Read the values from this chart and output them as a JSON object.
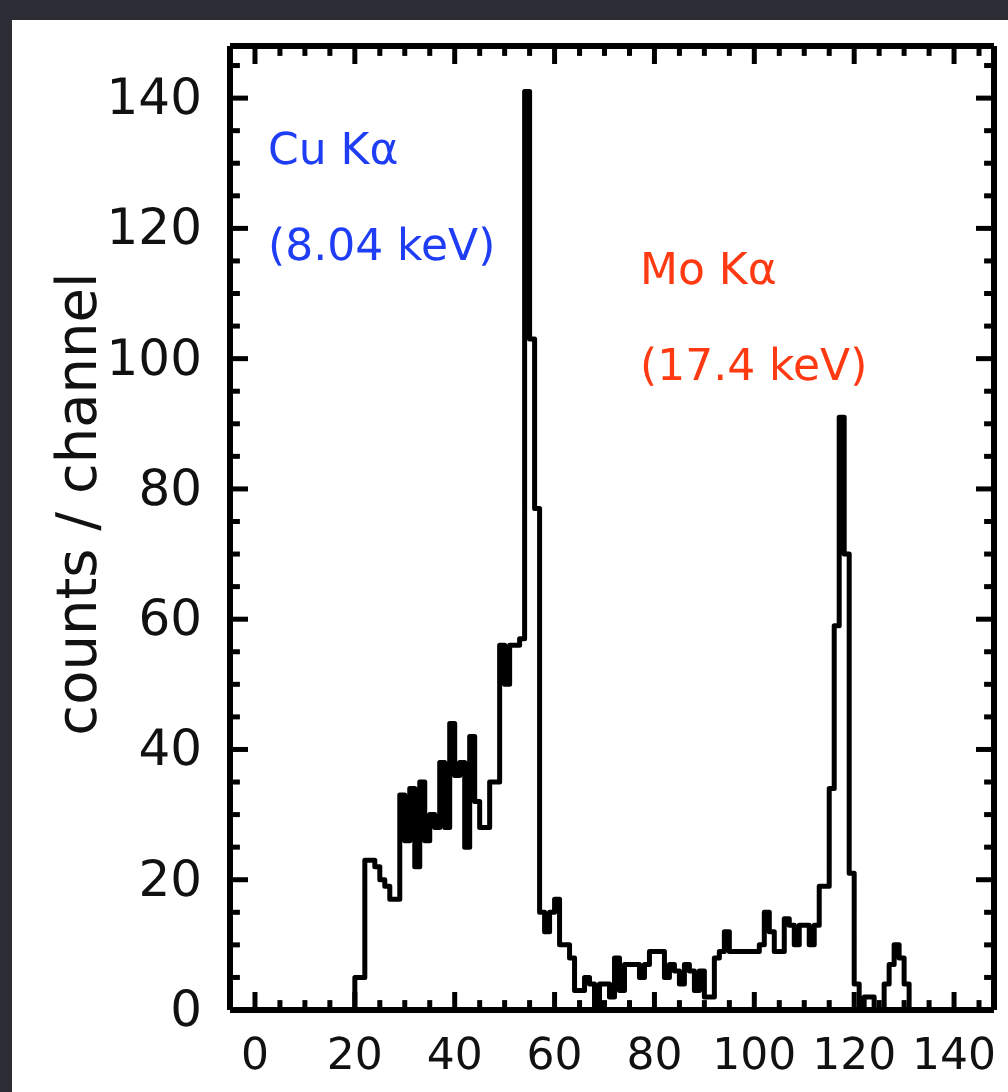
{
  "chart_data": {
    "type": "histogram",
    "ylabel": "counts / channel",
    "bins": [
      16,
      17,
      18,
      19,
      20,
      21,
      22,
      23,
      24,
      25,
      26,
      27,
      28,
      29,
      30,
      31,
      32,
      33,
      34,
      35,
      36,
      37,
      38,
      39,
      40,
      41,
      42,
      43,
      44,
      45,
      46,
      47,
      48,
      49,
      50,
      51,
      52,
      53,
      54,
      55,
      56,
      57,
      58,
      59,
      60,
      61,
      62,
      63,
      64,
      65,
      66,
      67,
      68,
      69,
      70,
      71,
      72,
      73,
      74,
      75,
      76,
      77,
      78,
      79,
      80,
      81,
      82,
      83,
      84,
      85,
      86,
      87,
      88,
      89,
      90,
      91,
      92,
      93,
      94,
      95,
      96,
      97,
      98,
      99,
      100,
      101,
      102,
      103,
      104,
      105,
      106,
      107,
      108,
      109,
      110,
      111,
      112,
      113,
      114,
      115,
      116,
      117,
      118,
      119,
      120,
      121,
      122,
      123,
      124,
      125,
      126,
      127,
      128,
      129,
      130,
      131,
      132,
      133,
      134
    ],
    "values": [
      0,
      0,
      0,
      0,
      5,
      5,
      23,
      23,
      22,
      20,
      19,
      17,
      17,
      33,
      26,
      34,
      22,
      35,
      26,
      30,
      28,
      38,
      28,
      44,
      36,
      38,
      25,
      42,
      32,
      28,
      28,
      35,
      35,
      56,
      50,
      56,
      56,
      57,
      141,
      103,
      77,
      15,
      12,
      15,
      17,
      10,
      10,
      8,
      3,
      3,
      5,
      4,
      0,
      4,
      4,
      2,
      8,
      3,
      7,
      7,
      7,
      5,
      7,
      9,
      9,
      9,
      5,
      7,
      6,
      4,
      7,
      6,
      3,
      6,
      2,
      2,
      8,
      9,
      12,
      9,
      9,
      9,
      9,
      9,
      9,
      10,
      15,
      12,
      9,
      9,
      14,
      13,
      10,
      13,
      13,
      10,
      13,
      19,
      19,
      34,
      59,
      91,
      70,
      21,
      4,
      0,
      2,
      2,
      0,
      0,
      4,
      7,
      10,
      8,
      4,
      0,
      0,
      0
    ],
    "color": "#000000",
    "xlim": [
      -5,
      148
    ],
    "ylim": [
      0,
      148
    ],
    "xticks": [
      0,
      {
        "value": 5,
        "label": null
      },
      {
        "value": 10,
        "label": null
      },
      {
        "value": 15,
        "label": null
      },
      20,
      {
        "value": 25,
        "label": null
      },
      {
        "value": 30,
        "label": null
      },
      {
        "value": 35,
        "label": null
      },
      40,
      {
        "value": 45,
        "label": null
      },
      {
        "value": 50,
        "label": null
      },
      {
        "value": 55,
        "label": null
      },
      60,
      {
        "value": 65,
        "label": null
      },
      {
        "value": 70,
        "label": null
      },
      {
        "value": 75,
        "label": null
      },
      80,
      {
        "value": 85,
        "label": null
      },
      {
        "value": 90,
        "label": null
      },
      {
        "value": 95,
        "label": null
      },
      100,
      {
        "value": 105,
        "label": null
      },
      {
        "value": 110,
        "label": null
      },
      {
        "value": 115,
        "label": null
      },
      120,
      {
        "value": 125,
        "label": null
      },
      {
        "value": 130,
        "label": null
      },
      {
        "value": 135,
        "label": null
      },
      140,
      {
        "value": 145,
        "label": null
      }
    ],
    "yticks": [
      0,
      {
        "value": 5,
        "label": null
      },
      {
        "value": 10,
        "label": null
      },
      {
        "value": 15,
        "label": null
      },
      20,
      {
        "value": 25,
        "label": null
      },
      {
        "value": 30,
        "label": null
      },
      {
        "value": 35,
        "label": null
      },
      40,
      {
        "value": 45,
        "label": null
      },
      {
        "value": 50,
        "label": null
      },
      {
        "value": 55,
        "label": null
      },
      60,
      {
        "value": 65,
        "label": null
      },
      {
        "value": 70,
        "label": null
      },
      {
        "value": 75,
        "label": null
      },
      80,
      {
        "value": 85,
        "label": null
      },
      {
        "value": 90,
        "label": null
      },
      {
        "value": 95,
        "label": null
      },
      100,
      {
        "value": 105,
        "label": null
      },
      {
        "value": 110,
        "label": null
      },
      {
        "value": 115,
        "label": null
      },
      120,
      {
        "value": 125,
        "label": null
      },
      {
        "value": 130,
        "label": null
      },
      {
        "value": 135,
        "label": null
      },
      140,
      {
        "value": 145,
        "label": null
      }
    ],
    "grid": false,
    "annotations": [
      "Cu Kα",
      "(8.04 keV)",
      "Mo Kα",
      "(17.4 keV)"
    ]
  }
}
